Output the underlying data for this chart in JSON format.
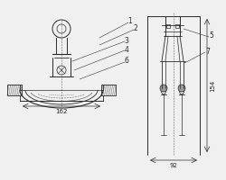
{
  "bg_color": "#f0f0f0",
  "line_color": "#2a2a2a",
  "leader_color": "#333333",
  "dim_color": "#1a1a1a",
  "dash_color": "#666666",
  "gray_fill": "#999999",
  "labels_left": [
    "1",
    "2",
    "3",
    "4",
    "6"
  ],
  "labels_right": [
    "5",
    "7"
  ],
  "dim_texts": [
    "162",
    "92",
    "154"
  ],
  "lw_main": 0.7,
  "lw_thin": 0.5,
  "lw_leader": 0.4
}
